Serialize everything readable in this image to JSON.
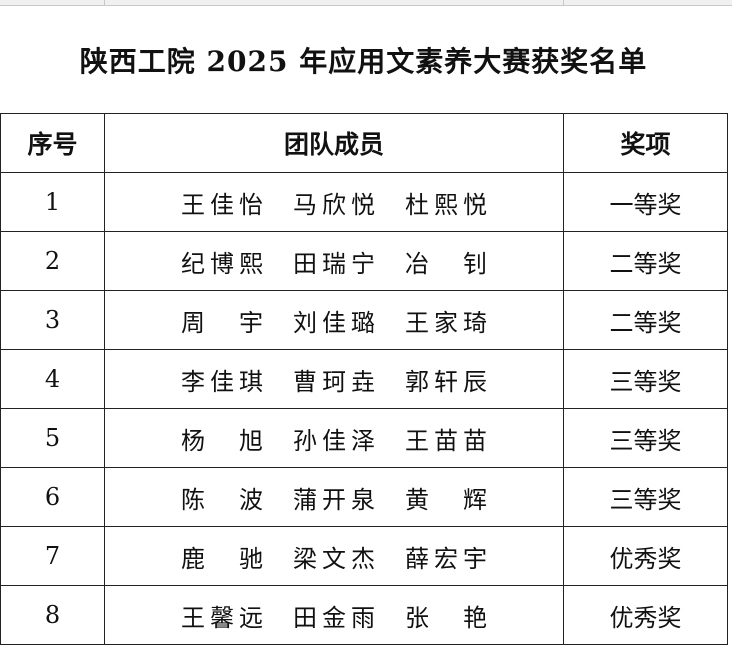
{
  "title": "陕西工院 2025 年应用文素养大赛获奖名单",
  "headers": {
    "no": "序号",
    "members": "团队成员",
    "award": "奖项"
  },
  "rows": [
    {
      "no": "1",
      "members": [
        "王佳怡",
        "马欣悦",
        "杜熙悦"
      ],
      "award": "一等奖"
    },
    {
      "no": "2",
      "members": [
        "纪博熙",
        "田瑞宁",
        "冶钊"
      ],
      "award": "二等奖"
    },
    {
      "no": "3",
      "members": [
        "周宇",
        "刘佳璐",
        "王家琦"
      ],
      "award": "二等奖"
    },
    {
      "no": "4",
      "members": [
        "李佳琪",
        "曹珂垚",
        "郭轩辰"
      ],
      "award": "三等奖"
    },
    {
      "no": "5",
      "members": [
        "杨旭",
        "孙佳泽",
        "王苗苗"
      ],
      "award": "三等奖"
    },
    {
      "no": "6",
      "members": [
        "陈波",
        "蒲开泉",
        "黄辉"
      ],
      "award": "三等奖"
    },
    {
      "no": "7",
      "members": [
        "鹿驰",
        "梁文杰",
        "薛宏宇"
      ],
      "award": "优秀奖"
    },
    {
      "no": "8",
      "members": [
        "王馨远",
        "田金雨",
        "张艳"
      ],
      "award": "优秀奖"
    }
  ]
}
